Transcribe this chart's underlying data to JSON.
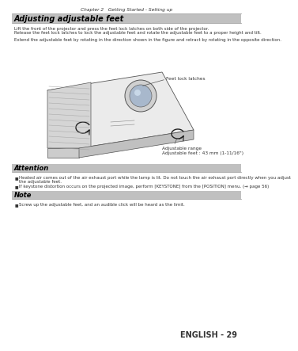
{
  "bg_color": "#ffffff",
  "header_text": "Chapter 2   Getting Started - Setting up",
  "section_title": "Adjusting adjustable feet",
  "body_lines": [
    "Lift the front of the projector and press the feet lock latches on both side of the projector.",
    "Release the feet lock latches to lock the adjustable feet and rotate the adjustable feet to a proper height and tilt.",
    "Extend the adjustable feet by rotating in the direction shown in the figure and retract by rotating in the opposite direction."
  ],
  "label_feet_lock": "Feet lock latches",
  "label_adjustable_range": "Adjustable range",
  "label_adjustable_feet": "Adjustable feet : 43 mm (1-11/16\")",
  "attention_title": "Attention",
  "attention_line1a": "Heated air comes out of the air exhaust port while the lamp is lit. Do not touch the air exhaust port directly when you adjust",
  "attention_line1b": "the adjustable feet.",
  "attention_line2": "If keystone distortion occurs on the projected image, perform [KEYSTONE] from the [POSITION] menu. (→ page 56)",
  "note_title": "Note",
  "note_line1": "Screw up the adjustable feet, and an audible click will be heard as the limit.",
  "footer_text": "ENGLISH - 29",
  "text_color": "#333333",
  "small_font_size": 4.2,
  "body_font_size": 4.0,
  "title_font_size": 7.0,
  "header_font_size": 4.2,
  "gray_bar_color": "#c0c0c0",
  "line_color": "#888888"
}
